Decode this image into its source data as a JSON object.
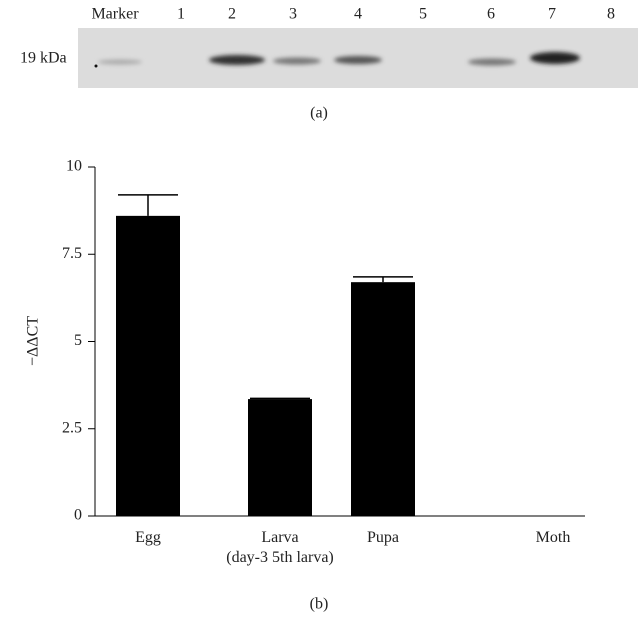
{
  "blot": {
    "lane_labels": [
      "Marker",
      "1",
      "2",
      "3",
      "4",
      "5",
      "6",
      "7",
      "8"
    ],
    "marker_label": "19 kDa",
    "caption": "(a)"
  },
  "chart_data": {
    "type": "bar",
    "ylabel": "−ΔΔCT",
    "categories": [
      "Egg",
      "Larva\n(day-3 5th larva)",
      "Pupa",
      "Moth"
    ],
    "values": [
      8.6,
      3.35,
      6.7,
      0
    ],
    "errors": [
      0.6,
      0.02,
      0.15,
      0
    ],
    "color": "#000000",
    "ylim": [
      0,
      10
    ],
    "yticks": [
      0,
      2.5,
      5,
      7.5,
      10
    ],
    "caption": "(b)"
  }
}
